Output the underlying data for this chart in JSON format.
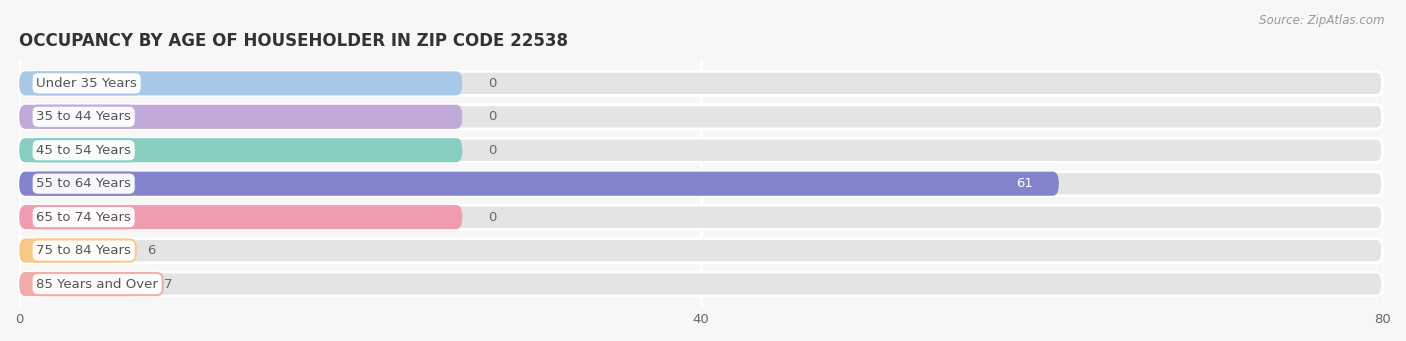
{
  "title": "OCCUPANCY BY AGE OF HOUSEHOLDER IN ZIP CODE 22538",
  "source": "Source: ZipAtlas.com",
  "categories": [
    "Under 35 Years",
    "35 to 44 Years",
    "45 to 54 Years",
    "55 to 64 Years",
    "65 to 74 Years",
    "75 to 84 Years",
    "85 Years and Over"
  ],
  "values": [
    0,
    0,
    0,
    61,
    0,
    6,
    7
  ],
  "bar_colors": [
    "#a8c8e8",
    "#c0a8d8",
    "#88cec0",
    "#8484cc",
    "#f09cb0",
    "#f8c888",
    "#f0aca8"
  ],
  "background_color": "#f7f7f7",
  "bar_background_color": "#e4e4e4",
  "xlim": [
    0,
    80
  ],
  "xticks": [
    0,
    40,
    80
  ],
  "title_fontsize": 12,
  "label_fontsize": 9.5,
  "value_fontsize": 9.5,
  "bar_height": 0.72,
  "label_box_color": "#ffffff",
  "label_text_color": "#555555",
  "title_color": "#333333",
  "source_color": "#999999",
  "value_color_inside": "#ffffff",
  "value_color_outside": "#666666",
  "zero_bar_width": 26
}
